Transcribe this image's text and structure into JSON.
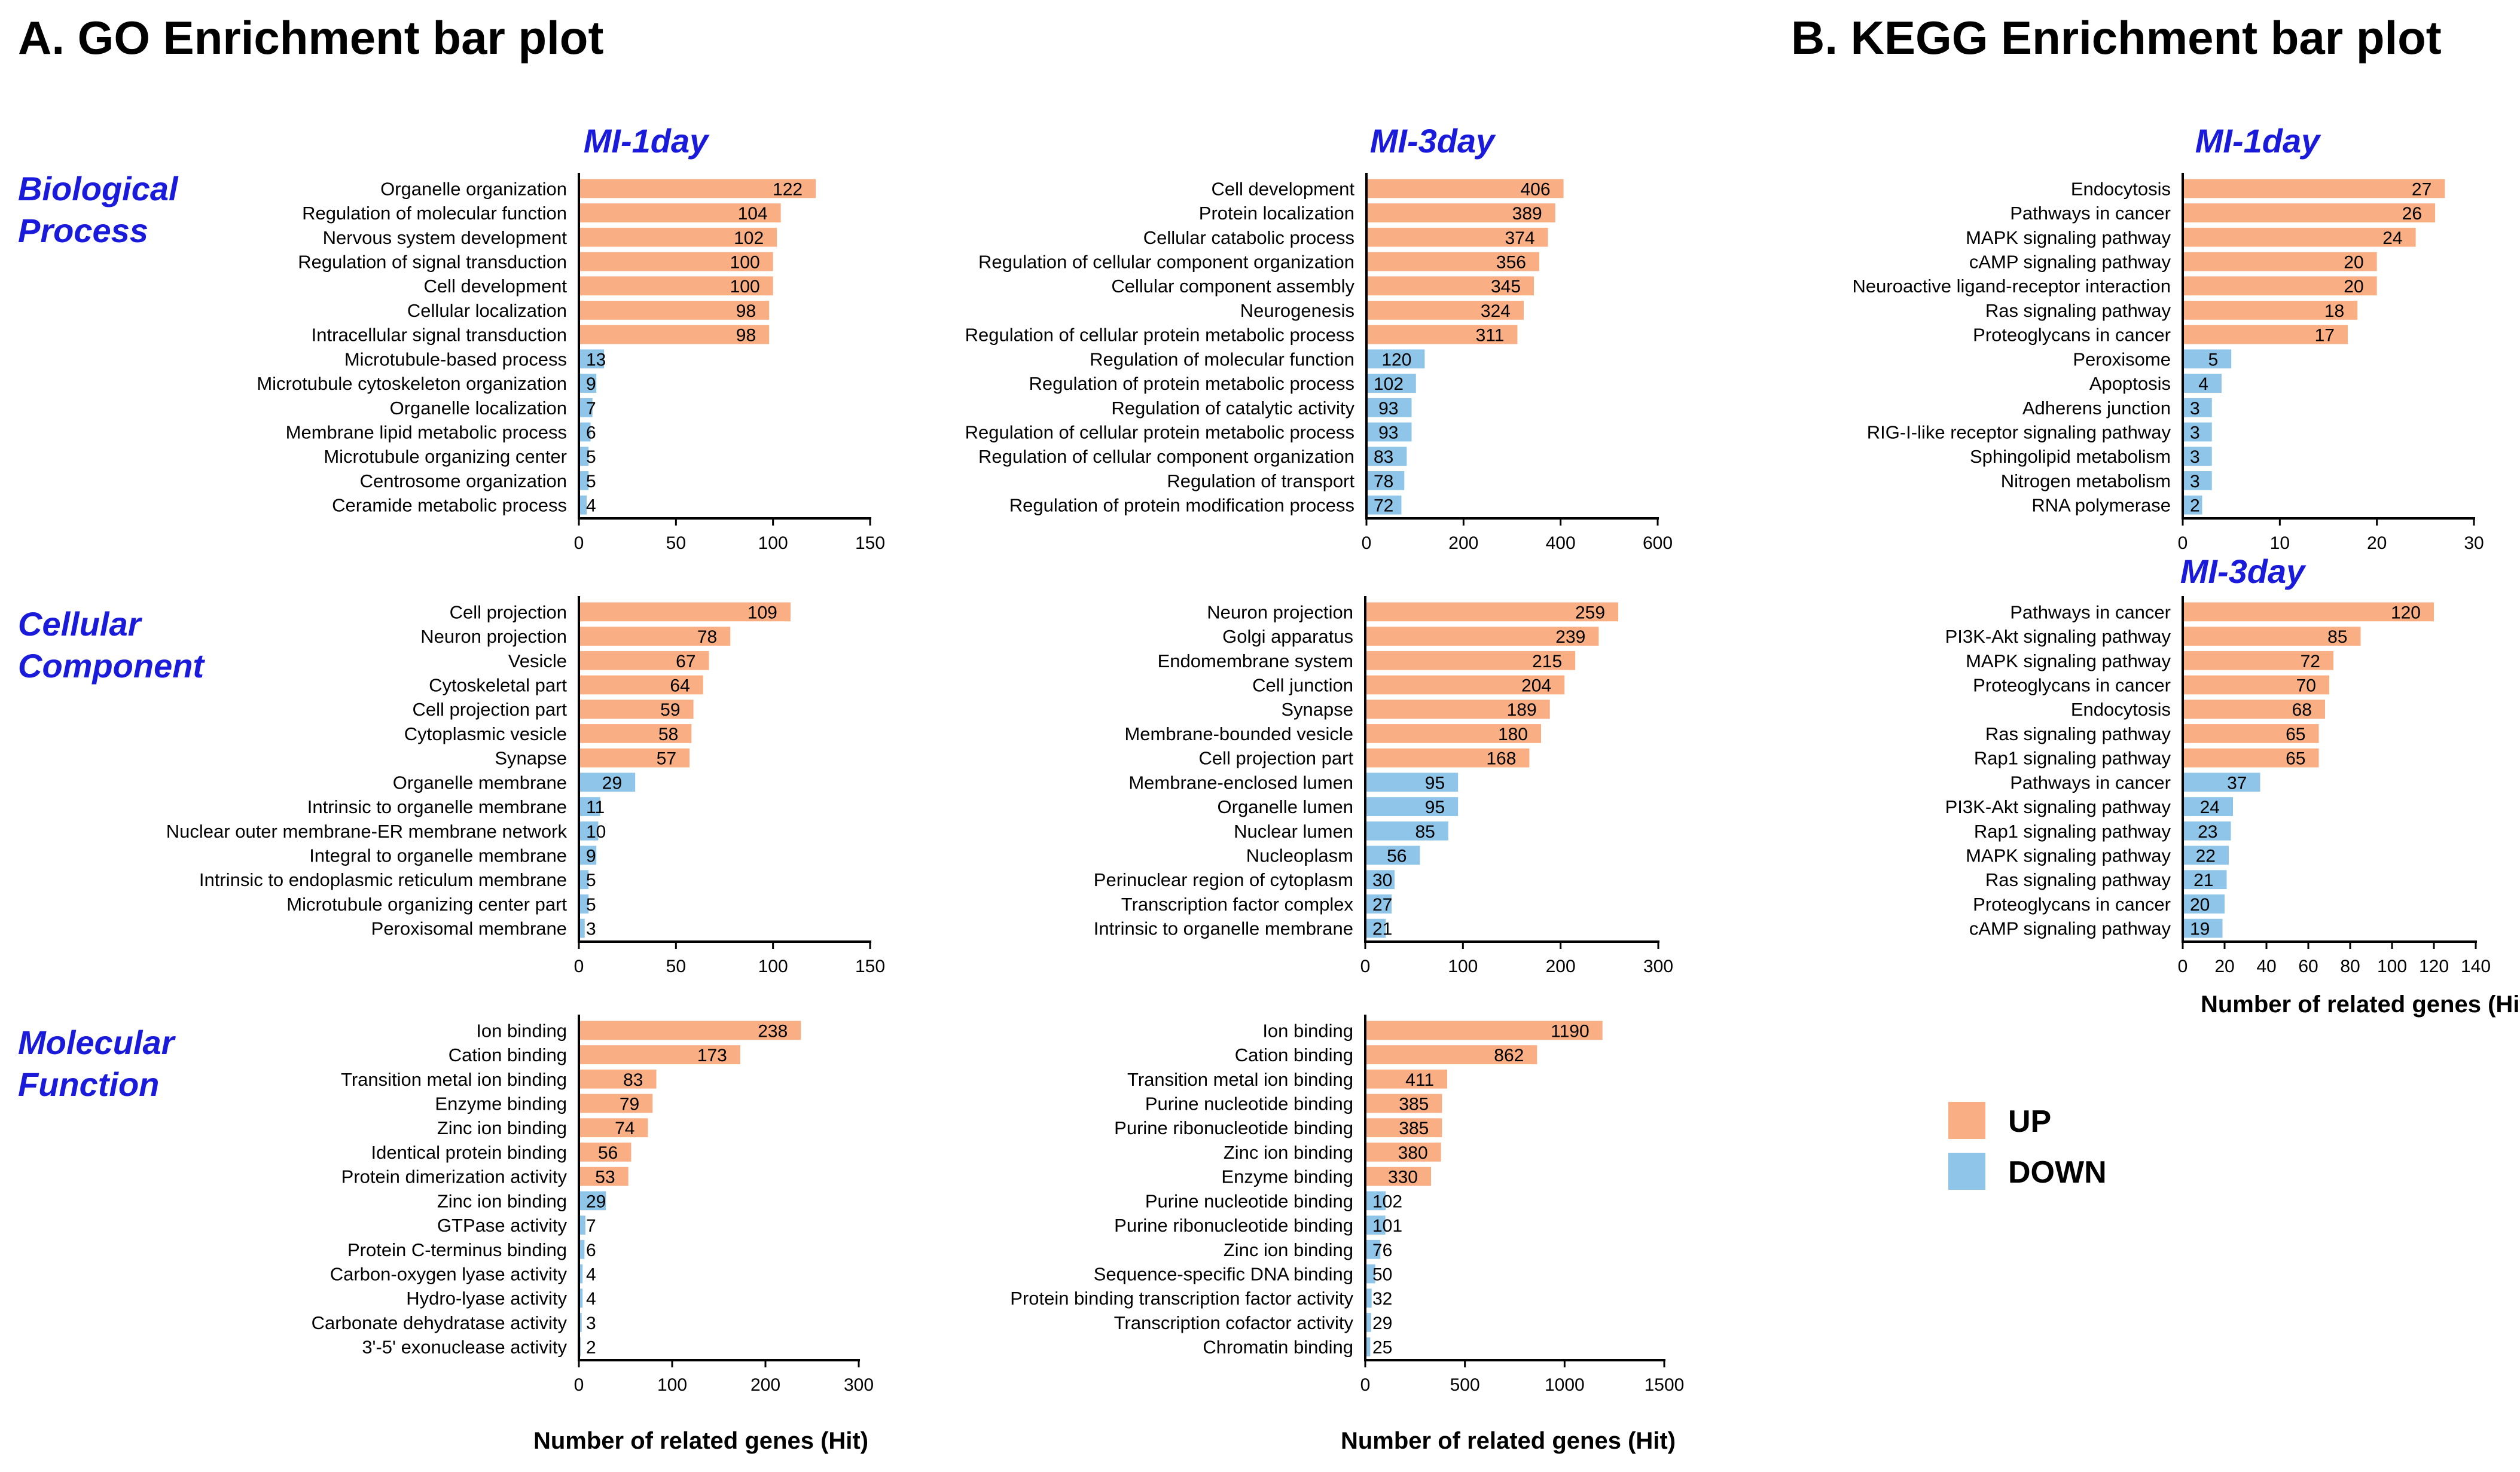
{
  "panels": {
    "go_title": "A. GO Enrichment bar plot",
    "kegg_title": "B. KEGG Enrichment bar plot"
  },
  "row_titles": {
    "bp": [
      "Biological",
      "Process"
    ],
    "cc": [
      "Cellular",
      "Component"
    ],
    "mf": [
      "Molecular",
      "Function"
    ]
  },
  "x_axis_title": "Number of related genes (Hit)",
  "legend": {
    "up_label": "UP",
    "down_label": "DOWN",
    "up_color": "#F9AE84",
    "down_color": "#8EC5E8"
  },
  "chart_data": [
    {
      "id": "go-bp-1day",
      "type": "bar",
      "orientation": "horizontal",
      "title": "MI-1day",
      "group": "Biological Process",
      "xlabel": "",
      "xlim": [
        0,
        150
      ],
      "xticks": [
        0,
        50,
        100,
        150
      ],
      "categories": [
        "Organelle organization",
        "Regulation of molecular function",
        "Nervous system development",
        "Regulation of signal transduction",
        "Cell development",
        "Cellular localization",
        "Intracellular signal transduction",
        "Microtubule-based process",
        "Microtubule cytoskeleton organization",
        "Organelle localization",
        "Membrane lipid metabolic process",
        "Microtubule organizing center",
        "Centrosome organization",
        "Ceramide metabolic process"
      ],
      "values": [
        122,
        104,
        102,
        100,
        100,
        98,
        98,
        13,
        9,
        7,
        6,
        5,
        5,
        4
      ],
      "direction": [
        "UP",
        "UP",
        "UP",
        "UP",
        "UP",
        "UP",
        "UP",
        "DOWN",
        "DOWN",
        "DOWN",
        "DOWN",
        "DOWN",
        "DOWN",
        "DOWN"
      ]
    },
    {
      "id": "go-bp-3day",
      "type": "bar",
      "orientation": "horizontal",
      "title": "MI-3day",
      "group": "Biological Process",
      "xlabel": "",
      "xlim": [
        0,
        600
      ],
      "xticks": [
        0,
        200,
        400,
        600
      ],
      "categories": [
        "Cell development",
        "Protein localization",
        "Cellular catabolic process",
        "Regulation of cellular component organization",
        "Cellular component assembly",
        "Neurogenesis",
        "Regulation of cellular protein metabolic process",
        "Regulation of molecular function",
        "Regulation of protein metabolic process",
        "Regulation of catalytic activity",
        "Regulation of cellular protein metabolic process",
        "Regulation of cellular component organization",
        "Regulation of transport",
        "Regulation of protein modification process"
      ],
      "values": [
        406,
        389,
        374,
        356,
        345,
        324,
        311,
        120,
        102,
        93,
        93,
        83,
        78,
        72
      ],
      "direction": [
        "UP",
        "UP",
        "UP",
        "UP",
        "UP",
        "UP",
        "UP",
        "DOWN",
        "DOWN",
        "DOWN",
        "DOWN",
        "DOWN",
        "DOWN",
        "DOWN"
      ]
    },
    {
      "id": "kegg-1day",
      "type": "bar",
      "orientation": "horizontal",
      "title": "MI-1day",
      "group": "KEGG",
      "xlabel": "",
      "xlim": [
        0,
        30
      ],
      "xticks": [
        0,
        10,
        20,
        30
      ],
      "categories": [
        "Endocytosis",
        "Pathways in cancer",
        "MAPK signaling pathway",
        "cAMP signaling pathway",
        "Neuroactive ligand-receptor interaction",
        "Ras signaling pathway",
        "Proteoglycans in cancer",
        "Peroxisome",
        "Apoptosis",
        "Adherens junction",
        "RIG-I-like receptor signaling pathway",
        "Sphingolipid metabolism",
        "Nitrogen metabolism",
        "RNA polymerase"
      ],
      "values": [
        27,
        26,
        24,
        20,
        20,
        18,
        17,
        5,
        4,
        3,
        3,
        3,
        3,
        2
      ],
      "direction": [
        "UP",
        "UP",
        "UP",
        "UP",
        "UP",
        "UP",
        "UP",
        "DOWN",
        "DOWN",
        "DOWN",
        "DOWN",
        "DOWN",
        "DOWN",
        "DOWN"
      ]
    },
    {
      "id": "go-cc-1day",
      "type": "bar",
      "orientation": "horizontal",
      "title": "",
      "group": "Cellular Component",
      "xlabel": "",
      "xlim": [
        0,
        150
      ],
      "xticks": [
        0,
        50,
        100,
        150
      ],
      "categories": [
        "Cell projection",
        "Neuron projection",
        "Vesicle",
        "Cytoskeletal part",
        "Cell projection part",
        "Cytoplasmic vesicle",
        "Synapse",
        "Organelle membrane",
        "Intrinsic to organelle membrane",
        "Nuclear outer membrane-ER membrane network",
        "Integral to organelle membrane",
        "Intrinsic to endoplasmic reticulum membrane",
        "Microtubule organizing center part",
        "Peroxisomal membrane"
      ],
      "values": [
        109,
        78,
        67,
        64,
        59,
        58,
        57,
        29,
        11,
        10,
        9,
        5,
        5,
        3
      ],
      "direction": [
        "UP",
        "UP",
        "UP",
        "UP",
        "UP",
        "UP",
        "UP",
        "DOWN",
        "DOWN",
        "DOWN",
        "DOWN",
        "DOWN",
        "DOWN",
        "DOWN"
      ]
    },
    {
      "id": "go-cc-3day",
      "type": "bar",
      "orientation": "horizontal",
      "title": "",
      "group": "Cellular Component",
      "xlabel": "",
      "xlim": [
        0,
        300
      ],
      "xticks": [
        0,
        100,
        200,
        300
      ],
      "categories": [
        "Neuron projection",
        "Golgi apparatus",
        "Endomembrane system",
        "Cell junction",
        "Synapse",
        "Membrane-bounded vesicle",
        "Cell projection part",
        "Membrane-enclosed lumen",
        "Organelle lumen",
        "Nuclear lumen",
        "Nucleoplasm",
        "Perinuclear region of cytoplasm",
        "Transcription factor complex",
        "Intrinsic to organelle membrane"
      ],
      "values": [
        259,
        239,
        215,
        204,
        189,
        180,
        168,
        95,
        95,
        85,
        56,
        30,
        27,
        21
      ],
      "direction": [
        "UP",
        "UP",
        "UP",
        "UP",
        "UP",
        "UP",
        "UP",
        "DOWN",
        "DOWN",
        "DOWN",
        "DOWN",
        "DOWN",
        "DOWN",
        "DOWN"
      ]
    },
    {
      "id": "kegg-3day",
      "type": "bar",
      "orientation": "horizontal",
      "title": "MI-3day",
      "group": "KEGG",
      "xlabel": "Number of related genes (Hit)",
      "xlim": [
        0,
        140
      ],
      "xticks": [
        0,
        20,
        40,
        60,
        80,
        100,
        120,
        140
      ],
      "categories": [
        "Pathways in cancer",
        "PI3K-Akt signaling pathway",
        "MAPK signaling pathway",
        "Proteoglycans in cancer",
        "Endocytosis",
        "Ras signaling pathway",
        "Rap1 signaling pathway",
        "Pathways in cancer",
        "PI3K-Akt signaling pathway",
        "Rap1 signaling pathway",
        "MAPK signaling pathway",
        "Ras signaling pathway",
        "Proteoglycans in cancer",
        "cAMP signaling pathway"
      ],
      "values": [
        120,
        85,
        72,
        70,
        68,
        65,
        65,
        37,
        24,
        23,
        22,
        21,
        20,
        19
      ],
      "direction": [
        "UP",
        "UP",
        "UP",
        "UP",
        "UP",
        "UP",
        "UP",
        "DOWN",
        "DOWN",
        "DOWN",
        "DOWN",
        "DOWN",
        "DOWN",
        "DOWN"
      ]
    },
    {
      "id": "go-mf-1day",
      "type": "bar",
      "orientation": "horizontal",
      "title": "",
      "group": "Molecular Function",
      "xlabel": "Number of related genes (Hit)",
      "xlim": [
        0,
        300
      ],
      "xticks": [
        0,
        100,
        200,
        300
      ],
      "categories": [
        "Ion binding",
        "Cation binding",
        "Transition metal ion binding",
        "Enzyme binding",
        "Zinc ion binding",
        "Identical protein binding",
        "Protein dimerization activity",
        "Zinc ion binding",
        "GTPase activity",
        "Protein C-terminus binding",
        "Carbon-oxygen lyase activity",
        "Hydro-lyase activity",
        "Carbonate dehydratase activity",
        "3'-5' exonuclease activity"
      ],
      "values": [
        238,
        173,
        83,
        79,
        74,
        56,
        53,
        29,
        7,
        6,
        4,
        4,
        3,
        2
      ],
      "direction": [
        "UP",
        "UP",
        "UP",
        "UP",
        "UP",
        "UP",
        "UP",
        "DOWN",
        "DOWN",
        "DOWN",
        "DOWN",
        "DOWN",
        "DOWN",
        "DOWN"
      ]
    },
    {
      "id": "go-mf-3day",
      "type": "bar",
      "orientation": "horizontal",
      "title": "",
      "group": "Molecular Function",
      "xlabel": "Number of related genes (Hit)",
      "xlim": [
        0,
        1500
      ],
      "xticks": [
        0,
        500,
        1000,
        1500
      ],
      "categories": [
        "Ion binding",
        "Cation binding",
        "Transition metal ion binding",
        "Purine nucleotide binding",
        "Purine ribonucleotide binding",
        "Zinc ion binding",
        "Enzyme binding",
        "Purine nucleotide binding",
        "Purine ribonucleotide binding",
        "Zinc ion binding",
        "Sequence-specific DNA binding",
        "Protein binding transcription factor activity",
        "Transcription cofactor activity",
        "Chromatin binding"
      ],
      "values": [
        1190,
        862,
        411,
        385,
        385,
        380,
        330,
        102,
        101,
        76,
        50,
        32,
        29,
        25
      ],
      "direction": [
        "UP",
        "UP",
        "UP",
        "UP",
        "UP",
        "UP",
        "UP",
        "DOWN",
        "DOWN",
        "DOWN",
        "DOWN",
        "DOWN",
        "DOWN",
        "DOWN"
      ]
    }
  ]
}
